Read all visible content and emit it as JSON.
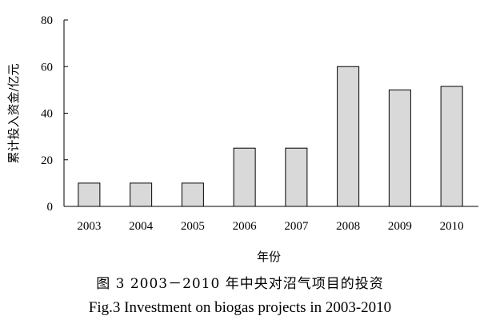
{
  "chart_data": {
    "type": "bar",
    "categories": [
      "2003",
      "2004",
      "2005",
      "2006",
      "2007",
      "2008",
      "2009",
      "2010"
    ],
    "values": [
      10,
      10,
      10,
      25,
      25,
      60,
      50,
      51.5
    ],
    "ylabel": "累计投入资金/亿元",
    "xlabel": "年份",
    "ylim": [
      0,
      80
    ],
    "yticks": [
      "0",
      "20",
      "40",
      "60",
      "80"
    ],
    "grid": false,
    "bar_color": "#d9d9d9",
    "bar_edge_color": "#000000"
  },
  "caption": {
    "cn": "图 3 2003－2010 年中央对沼气项目的投资",
    "en": "Fig.3 Investment on biogas projects in 2003-2010"
  }
}
